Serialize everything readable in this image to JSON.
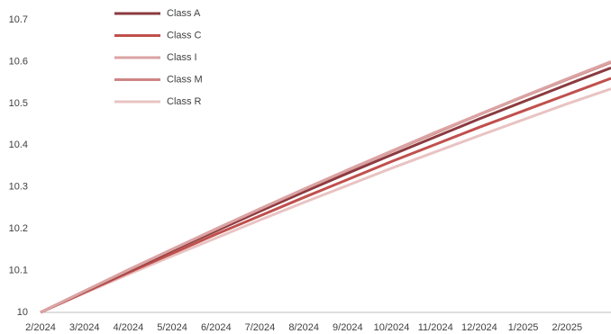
{
  "chart_data": {
    "type": "line",
    "categories": [
      "2/2024",
      "3/2024",
      "4/2024",
      "5/2024",
      "6/2024",
      "7/2024",
      "8/2024",
      "9/2024",
      "10/2024",
      "11/2024",
      "12/2024",
      "1/2025",
      "2/2025",
      null
    ],
    "series": [
      {
        "name": "Class A",
        "color": "#8b3a3f",
        "values": [
          10,
          10.05,
          10.099,
          10.148,
          10.195,
          10.242,
          10.288,
          10.333,
          10.377,
          10.42,
          10.463,
          10.504,
          10.545,
          10.585
        ]
      },
      {
        "name": "Class C",
        "color": "#c0504d",
        "values": [
          10,
          10.048,
          10.095,
          10.141,
          10.187,
          10.231,
          10.275,
          10.318,
          10.361,
          10.402,
          10.443,
          10.482,
          10.521,
          10.56
        ]
      },
      {
        "name": "Class I",
        "color": "#dba3a3",
        "values": [
          10,
          10.051,
          10.102,
          10.151,
          10.2,
          10.248,
          10.295,
          10.341,
          10.386,
          10.431,
          10.474,
          10.517,
          10.559,
          10.6
        ]
      },
      {
        "name": "Class M",
        "color": "#cf8585",
        "values": [
          10,
          10.051,
          10.101,
          10.151,
          10.199,
          10.247,
          10.294,
          10.34,
          10.385,
          10.429,
          10.473,
          10.516,
          10.557,
          10.598
        ]
      },
      {
        "name": "Class R",
        "color": "#e9c3c3",
        "values": [
          10,
          10.046,
          10.091,
          10.135,
          10.178,
          10.221,
          10.263,
          10.304,
          10.345,
          10.384,
          10.423,
          10.461,
          10.499,
          10.535
        ]
      }
    ],
    "ylim": [
      10,
      10.7
    ],
    "yticks": [
      10,
      10.1,
      10.2,
      10.3,
      10.4,
      10.5,
      10.6,
      10.7
    ],
    "legend": "top-left"
  }
}
